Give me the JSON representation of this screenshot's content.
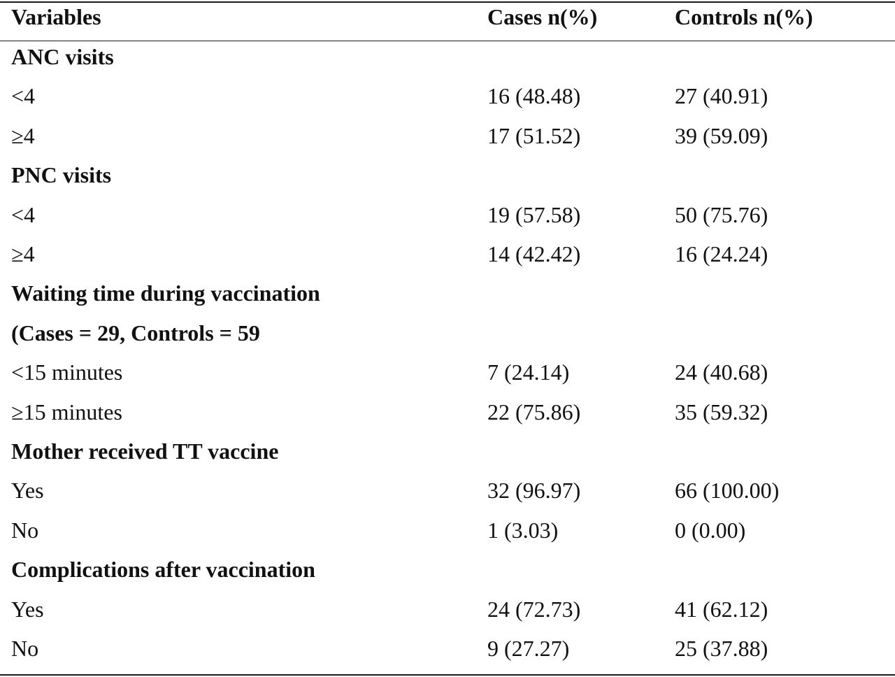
{
  "header": {
    "variables": "Variables",
    "cases": "Cases n(%)",
    "controls": "Controls n(%)"
  },
  "rows": [
    {
      "type": "section",
      "label": "ANC visits"
    },
    {
      "type": "data",
      "label": "<4",
      "cases": "16 (48.48)",
      "controls": "27 (40.91)"
    },
    {
      "type": "data",
      "label": "≥4",
      "cases": "17 (51.52)",
      "controls": "39 (59.09)"
    },
    {
      "type": "section",
      "label": "PNC visits"
    },
    {
      "type": "data",
      "label": "<4",
      "cases": "19 (57.58)",
      "controls": "50 (75.76)"
    },
    {
      "type": "data",
      "label": "≥4",
      "cases": "14 (42.42)",
      "controls": "16 (24.24)"
    },
    {
      "type": "section",
      "label": "Waiting time during vaccination"
    },
    {
      "type": "section",
      "label": "(Cases = 29, Controls = 59"
    },
    {
      "type": "data",
      "label": "<15 minutes",
      "cases": "7 (24.14)",
      "controls": "24 (40.68)"
    },
    {
      "type": "data",
      "label": "≥15 minutes",
      "cases": "22 (75.86)",
      "controls": "35 (59.32)"
    },
    {
      "type": "section",
      "label": "Mother received TT vaccine"
    },
    {
      "type": "data",
      "label": "Yes",
      "cases": "32 (96.97)",
      "controls": "66 (100.00)"
    },
    {
      "type": "data",
      "label": "No",
      "cases": "1 (3.03)",
      "controls": "0 (0.00)"
    },
    {
      "type": "section",
      "label": "Complications after vaccination"
    },
    {
      "type": "data",
      "label": "Yes",
      "cases": "24 (72.73)",
      "controls": "41 (62.12)"
    },
    {
      "type": "data",
      "label": "No",
      "cases": "9 (27.27)",
      "controls": "25 (37.88)"
    }
  ]
}
